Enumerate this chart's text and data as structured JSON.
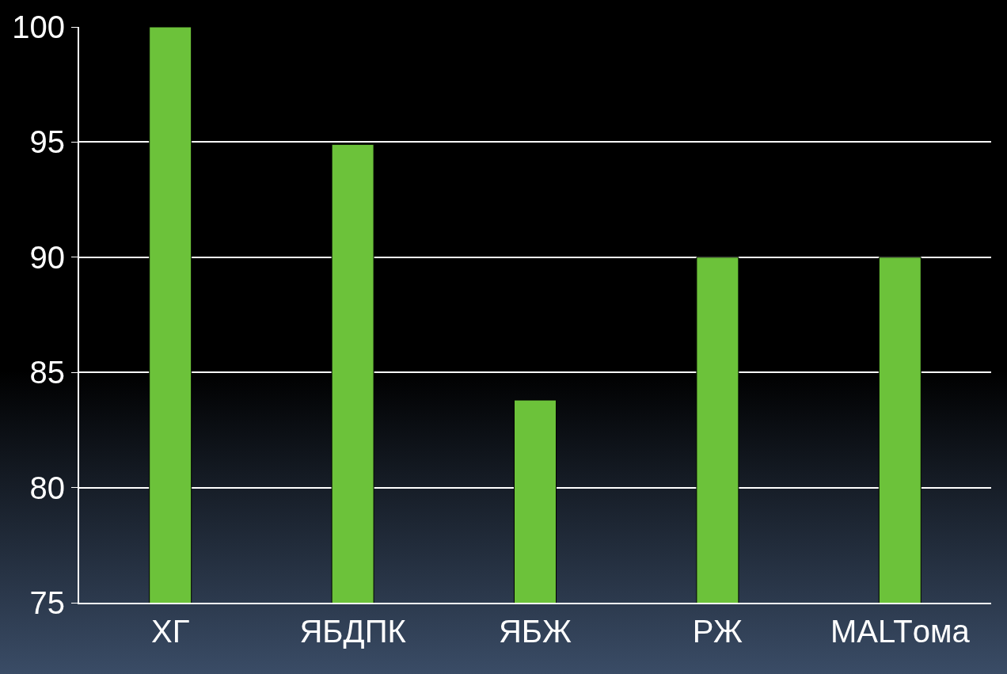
{
  "chart_data": {
    "type": "bar",
    "categories": [
      "ХГ",
      "ЯБДПК",
      "ЯБЖ",
      "РЖ",
      "MALTома"
    ],
    "values": [
      100,
      94.9,
      83.8,
      90,
      90
    ],
    "color": "#6cc23a",
    "ylim": [
      75,
      100
    ],
    "yticks": [
      75,
      80,
      85,
      90,
      95,
      100
    ],
    "grid": "y",
    "legend": false
  }
}
